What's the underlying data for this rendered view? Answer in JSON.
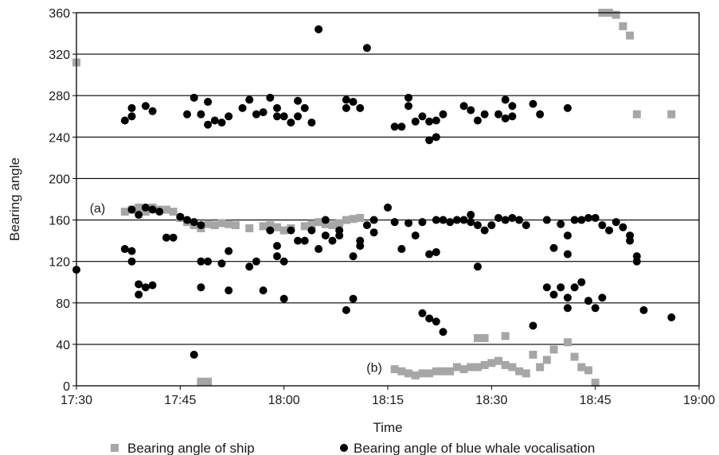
{
  "chart_data": {
    "type": "scatter",
    "xlabel": "Time",
    "ylabel": "Bearing angle",
    "x_range": [
      "17:30",
      "19:00"
    ],
    "ylim": [
      0,
      360
    ],
    "x_ticks": [
      "17:30",
      "17:45",
      "18:00",
      "18:15",
      "18:30",
      "18:45",
      "19:00"
    ],
    "y_ticks": [
      0,
      40,
      80,
      120,
      160,
      200,
      240,
      280,
      320,
      360
    ],
    "grid": "horizontal",
    "legend_position": "bottom",
    "annotations": [
      {
        "text": "(a)",
        "x": "17:31",
        "y": 172
      },
      {
        "text": "(b)",
        "x": "18:11",
        "y": 18
      }
    ],
    "series": [
      {
        "name": "Bearing angle of ship",
        "marker": "square",
        "color": "#a6a6a6",
        "points": [
          [
            "17:30",
            312
          ],
          [
            "17:37",
            168
          ],
          [
            "17:38",
            170
          ],
          [
            "17:39",
            172
          ],
          [
            "17:40",
            168
          ],
          [
            "17:41",
            172
          ],
          [
            "17:42",
            170
          ],
          [
            "17:43",
            170
          ],
          [
            "17:44",
            168
          ],
          [
            "17:45",
            162
          ],
          [
            "17:46",
            158
          ],
          [
            "17:47",
            155
          ],
          [
            "17:48",
            152
          ],
          [
            "17:49",
            156
          ],
          [
            "17:50",
            155
          ],
          [
            "17:51",
            157
          ],
          [
            "17:52",
            156
          ],
          [
            "17:53",
            155
          ],
          [
            "17:55",
            152
          ],
          [
            "17:57",
            154
          ],
          [
            "17:58",
            155
          ],
          [
            "17:59",
            153
          ],
          [
            "18:00",
            150
          ],
          [
            "18:01",
            152
          ],
          [
            "18:03",
            154
          ],
          [
            "18:04",
            156
          ],
          [
            "18:05",
            158
          ],
          [
            "18:06",
            156
          ],
          [
            "18:07",
            155
          ],
          [
            "18:08",
            157
          ],
          [
            "18:09",
            160
          ],
          [
            "18:10",
            161
          ],
          [
            "18:11",
            162
          ],
          [
            "17:48",
            4
          ],
          [
            "17:49",
            4
          ],
          [
            "18:16",
            16
          ],
          [
            "18:17",
            14
          ],
          [
            "18:18",
            12
          ],
          [
            "18:19",
            10
          ],
          [
            "18:20",
            12
          ],
          [
            "18:21",
            12
          ],
          [
            "18:22",
            14
          ],
          [
            "18:23",
            14
          ],
          [
            "18:24",
            14
          ],
          [
            "18:25",
            18
          ],
          [
            "18:26",
            16
          ],
          [
            "18:27",
            18
          ],
          [
            "18:28",
            18
          ],
          [
            "18:29",
            20
          ],
          [
            "18:30",
            22
          ],
          [
            "18:31",
            24
          ],
          [
            "18:32",
            20
          ],
          [
            "18:33",
            18
          ],
          [
            "18:34",
            14
          ],
          [
            "18:35",
            12
          ],
          [
            "18:36",
            30
          ],
          [
            "18:37",
            18
          ],
          [
            "18:38",
            25
          ],
          [
            "18:39",
            35
          ],
          [
            "18:41",
            42
          ],
          [
            "18:42",
            28
          ],
          [
            "18:43",
            18
          ],
          [
            "18:44",
            15
          ],
          [
            "18:45",
            3
          ],
          [
            "18:28",
            46
          ],
          [
            "18:29",
            46
          ],
          [
            "18:32",
            48
          ],
          [
            "18:46",
            360
          ],
          [
            "18:47",
            360
          ],
          [
            "18:48",
            358
          ],
          [
            "18:49",
            347
          ],
          [
            "18:50",
            338
          ],
          [
            "18:51",
            262
          ],
          [
            "18:56",
            262
          ]
        ]
      },
      {
        "name": "Bearing angle of blue whale vocalisation",
        "marker": "circle",
        "color": "#000000",
        "points": [
          [
            "17:30",
            112
          ],
          [
            "17:37",
            256
          ],
          [
            "17:38",
            268
          ],
          [
            "17:38",
            260
          ],
          [
            "17:40",
            270
          ],
          [
            "17:41",
            265
          ],
          [
            "17:37",
            132
          ],
          [
            "17:38",
            130
          ],
          [
            "17:38",
            120
          ],
          [
            "17:39",
            98
          ],
          [
            "17:39",
            88
          ],
          [
            "17:40",
            95
          ],
          [
            "17:41",
            97
          ],
          [
            "17:38",
            170
          ],
          [
            "17:39",
            165
          ],
          [
            "17:40",
            172
          ],
          [
            "17:41",
            170
          ],
          [
            "17:42",
            168
          ],
          [
            "17:43",
            143
          ],
          [
            "17:44",
            143
          ],
          [
            "17:45",
            163
          ],
          [
            "17:46",
            160
          ],
          [
            "17:47",
            158
          ],
          [
            "17:48",
            155
          ],
          [
            "17:46",
            262
          ],
          [
            "17:47",
            278
          ],
          [
            "17:48",
            262
          ],
          [
            "17:49",
            274
          ],
          [
            "17:49",
            252
          ],
          [
            "17:50",
            256
          ],
          [
            "17:51",
            254
          ],
          [
            "17:52",
            260
          ],
          [
            "17:54",
            268
          ],
          [
            "17:55",
            276
          ],
          [
            "17:56",
            262
          ],
          [
            "17:57",
            264
          ],
          [
            "17:58",
            278
          ],
          [
            "17:59",
            268
          ],
          [
            "17:59",
            260
          ],
          [
            "18:00",
            260
          ],
          [
            "18:01",
            254
          ],
          [
            "18:02",
            275
          ],
          [
            "18:02",
            260
          ],
          [
            "18:03",
            268
          ],
          [
            "18:04",
            254
          ],
          [
            "18:05",
            344
          ],
          [
            "18:09",
            276
          ],
          [
            "18:09",
            268
          ],
          [
            "18:10",
            274
          ],
          [
            "18:11",
            268
          ],
          [
            "18:12",
            326
          ],
          [
            "17:47",
            30
          ],
          [
            "17:48",
            95
          ],
          [
            "17:48",
            120
          ],
          [
            "17:49",
            120
          ],
          [
            "17:51",
            118
          ],
          [
            "17:52",
            130
          ],
          [
            "17:52",
            92
          ],
          [
            "17:55",
            115
          ],
          [
            "17:56",
            120
          ],
          [
            "17:57",
            92
          ],
          [
            "17:58",
            150
          ],
          [
            "17:59",
            135
          ],
          [
            "17:59",
            125
          ],
          [
            "18:00",
            120
          ],
          [
            "18:00",
            84
          ],
          [
            "18:01",
            150
          ],
          [
            "18:02",
            140
          ],
          [
            "18:03",
            140
          ],
          [
            "18:04",
            150
          ],
          [
            "18:05",
            132
          ],
          [
            "18:06",
            160
          ],
          [
            "18:06",
            145
          ],
          [
            "18:07",
            140
          ],
          [
            "18:08",
            145
          ],
          [
            "18:08",
            150
          ],
          [
            "18:09",
            73
          ],
          [
            "18:10",
            125
          ],
          [
            "18:10",
            84
          ],
          [
            "18:11",
            135
          ],
          [
            "18:11",
            140
          ],
          [
            "18:12",
            155
          ],
          [
            "18:13",
            148
          ],
          [
            "18:13",
            160
          ],
          [
            "18:15",
            172
          ],
          [
            "18:16",
            250
          ],
          [
            "18:17",
            250
          ],
          [
            "18:18",
            278
          ],
          [
            "18:18",
            270
          ],
          [
            "18:19",
            255
          ],
          [
            "18:20",
            260
          ],
          [
            "18:21",
            255
          ],
          [
            "18:21",
            237
          ],
          [
            "18:22",
            256
          ],
          [
            "18:22",
            240
          ],
          [
            "18:23",
            262
          ],
          [
            "18:26",
            270
          ],
          [
            "18:27",
            266
          ],
          [
            "18:28",
            256
          ],
          [
            "18:29",
            262
          ],
          [
            "18:31",
            262
          ],
          [
            "18:32",
            258
          ],
          [
            "18:32",
            276
          ],
          [
            "18:33",
            270
          ],
          [
            "18:33",
            260
          ],
          [
            "18:36",
            272
          ],
          [
            "18:37",
            262
          ],
          [
            "18:41",
            268
          ],
          [
            "18:16",
            158
          ],
          [
            "18:17",
            132
          ],
          [
            "18:18",
            157
          ],
          [
            "18:19",
            145
          ],
          [
            "18:20",
            158
          ],
          [
            "18:21",
            127
          ],
          [
            "18:22",
            129
          ],
          [
            "18:22",
            160
          ],
          [
            "18:23",
            160
          ],
          [
            "18:24",
            158
          ],
          [
            "18:25",
            160
          ],
          [
            "18:26",
            160
          ],
          [
            "18:27",
            165
          ],
          [
            "18:27",
            158
          ],
          [
            "18:28",
            115
          ],
          [
            "18:28",
            155
          ],
          [
            "18:29",
            150
          ],
          [
            "18:30",
            155
          ],
          [
            "18:31",
            162
          ],
          [
            "18:32",
            160
          ],
          [
            "18:33",
            162
          ],
          [
            "18:34",
            160
          ],
          [
            "18:35",
            155
          ],
          [
            "18:36",
            58
          ],
          [
            "18:38",
            160
          ],
          [
            "18:39",
            133
          ],
          [
            "18:40",
            156
          ],
          [
            "18:41",
            127
          ],
          [
            "18:41",
            145
          ],
          [
            "18:42",
            160
          ],
          [
            "18:43",
            160
          ],
          [
            "18:44",
            162
          ],
          [
            "18:45",
            162
          ],
          [
            "18:46",
            155
          ],
          [
            "18:47",
            150
          ],
          [
            "18:48",
            158
          ],
          [
            "18:49",
            153
          ],
          [
            "18:50",
            145
          ],
          [
            "18:50",
            140
          ],
          [
            "18:51",
            125
          ],
          [
            "18:51",
            120
          ],
          [
            "18:20",
            70
          ],
          [
            "18:21",
            65
          ],
          [
            "18:22",
            62
          ],
          [
            "18:23",
            52
          ],
          [
            "18:38",
            95
          ],
          [
            "18:39",
            88
          ],
          [
            "18:40",
            95
          ],
          [
            "18:41",
            85
          ],
          [
            "18:41",
            75
          ],
          [
            "18:42",
            95
          ],
          [
            "18:43",
            100
          ],
          [
            "18:44",
            82
          ],
          [
            "18:45",
            75
          ],
          [
            "18:46",
            85
          ],
          [
            "18:52",
            73
          ],
          [
            "18:56",
            66
          ]
        ]
      }
    ]
  }
}
